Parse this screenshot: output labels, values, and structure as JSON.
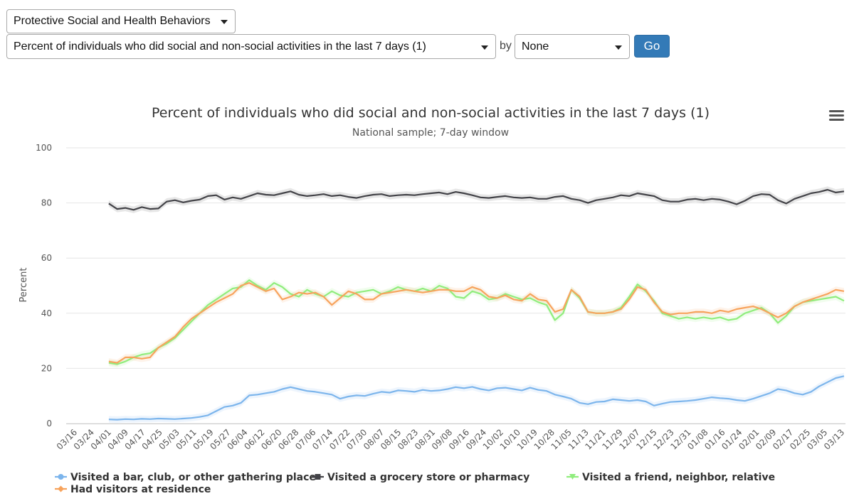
{
  "controls": {
    "category": "Protective Social and Health Behaviors",
    "question": "Percent of individuals who did social and non-social activities in the last 7 days (1)",
    "by_label": "by",
    "by_value": "None",
    "go_label": "Go"
  },
  "colors": {
    "bar": "#7cb5ec",
    "grocery": "#434348",
    "friend": "#90ed7d",
    "visitors": "#f7a35c",
    "band": "#e6e6e6",
    "grid": "#e6e6e6"
  },
  "icons": {
    "menu": "hamburger-menu-icon"
  },
  "chart_data": {
    "type": "line",
    "title": "Percent of individuals who did social and non-social activities in the last 7 days (1)",
    "subtitle": "National sample; 7-day window",
    "ylabel": "Percent",
    "ylim": [
      0,
      100
    ],
    "yticks": [
      "0",
      "20",
      "40",
      "60",
      "80",
      "100"
    ],
    "grid": true,
    "legend_position": "bottom-left",
    "x_tick_labels": [
      "03/16",
      "03/24",
      "04/01",
      "04/09",
      "04/17",
      "04/25",
      "05/03",
      "05/11",
      "05/19",
      "05/27",
      "06/04",
      "06/12",
      "06/20",
      "06/28",
      "07/06",
      "07/14",
      "07/22",
      "07/30",
      "08/07",
      "08/15",
      "08/23",
      "08/31",
      "09/08",
      "09/16",
      "09/24",
      "10/02",
      "10/10",
      "10/19",
      "10/28",
      "11/05",
      "11/13",
      "11/21",
      "11/29",
      "12/07",
      "12/15",
      "12/23",
      "12/31",
      "01/08",
      "01/16",
      "01/24",
      "02/01",
      "02/09",
      "02/17",
      "02/25",
      "03/05",
      "03/13"
    ],
    "x_start_tick": 2,
    "series": [
      {
        "name": "Visited a bar, club, or other gathering place",
        "color": "#7cb5ec",
        "marker": "circle",
        "values": [
          1.5,
          1.4,
          1.6,
          1.5,
          1.7,
          1.6,
          1.8,
          1.7,
          1.6,
          1.8,
          2.0,
          2.4,
          3.0,
          4.5,
          6.0,
          6.5,
          7.5,
          10.2,
          10.5,
          11.0,
          11.5,
          12.5,
          13.2,
          12.5,
          11.8,
          11.5,
          11.0,
          10.5,
          9.0,
          9.8,
          10.2,
          10.0,
          10.8,
          11.5,
          11.2,
          12.0,
          11.8,
          11.5,
          12.2,
          11.8,
          12.0,
          12.5,
          13.2,
          12.8,
          13.3,
          12.5,
          12.0,
          12.8,
          13.0,
          12.5,
          12.0,
          13.0,
          12.2,
          11.8,
          10.5,
          9.8,
          9.0,
          7.5,
          7.0,
          7.8,
          8.0,
          8.8,
          8.5,
          8.2,
          8.5,
          8.0,
          6.5,
          7.2,
          7.8,
          8.0,
          8.2,
          8.5,
          9.0,
          9.5,
          9.2,
          9.0,
          8.5,
          8.2,
          9.0,
          10.0,
          11.0,
          12.5,
          12.0,
          11.0,
          10.5,
          11.5,
          13.5,
          15.0,
          16.5,
          17.2
        ]
      },
      {
        "name": "Visited a grocery store or pharmacy",
        "color": "#434348",
        "marker": "square",
        "values": [
          79.8,
          77.8,
          78.2,
          77.5,
          78.5,
          77.8,
          78.0,
          80.5,
          81.0,
          80.2,
          80.8,
          81.2,
          82.5,
          82.8,
          81.2,
          82.0,
          81.5,
          82.5,
          83.5,
          83.0,
          82.8,
          83.5,
          84.2,
          83.0,
          82.5,
          82.8,
          83.2,
          82.5,
          82.8,
          82.2,
          81.8,
          82.5,
          83.0,
          83.2,
          82.5,
          82.8,
          83.0,
          82.8,
          83.2,
          83.5,
          83.8,
          83.2,
          84.0,
          83.5,
          82.8,
          82.0,
          81.8,
          82.2,
          82.5,
          82.0,
          81.8,
          82.0,
          81.5,
          81.5,
          82.2,
          82.5,
          81.5,
          81.0,
          80.0,
          81.0,
          81.5,
          82.0,
          82.8,
          82.5,
          83.5,
          83.0,
          82.5,
          81.0,
          80.5,
          80.5,
          81.2,
          81.5,
          81.0,
          81.5,
          81.2,
          80.5,
          79.5,
          80.8,
          82.5,
          83.2,
          83.0,
          81.0,
          79.8,
          81.5,
          82.5,
          83.5,
          84.0,
          84.8,
          83.8,
          84.2
        ]
      },
      {
        "name": "Visited a friend, neighbor, relative",
        "color": "#90ed7d",
        "marker": "triangle-down",
        "values": [
          22.0,
          21.5,
          22.5,
          24.0,
          25.0,
          25.5,
          27.5,
          29.0,
          31.0,
          34.0,
          37.0,
          40.0,
          43.0,
          45.0,
          47.0,
          49.0,
          49.5,
          52.0,
          50.0,
          48.5,
          51.0,
          49.5,
          47.0,
          46.0,
          48.5,
          47.0,
          46.0,
          48.0,
          46.5,
          46.0,
          47.5,
          48.0,
          48.5,
          47.0,
          48.0,
          49.5,
          48.5,
          48.0,
          49.0,
          48.0,
          50.0,
          49.0,
          46.0,
          45.5,
          48.0,
          47.0,
          45.0,
          45.5,
          47.0,
          46.0,
          45.0,
          45.5,
          44.0,
          43.0,
          37.5,
          40.0,
          48.5,
          45.5,
          40.5,
          40.0,
          40.0,
          40.5,
          42.0,
          46.0,
          50.5,
          48.0,
          44.5,
          40.0,
          39.0,
          38.0,
          38.5,
          38.0,
          38.5,
          38.0,
          38.5,
          37.5,
          38.0,
          40.0,
          41.0,
          42.0,
          40.0,
          36.5,
          39.0,
          42.5,
          44.0,
          44.5,
          45.0,
          45.5,
          46.0,
          44.5
        ]
      },
      {
        "name": "Had visitors at residence",
        "color": "#f7a35c",
        "marker": "diamond",
        "values": [
          22.5,
          22.0,
          24.0,
          24.0,
          23.5,
          24.0,
          27.5,
          29.5,
          31.5,
          35.0,
          38.0,
          40.0,
          42.0,
          44.0,
          45.5,
          47.0,
          50.0,
          51.0,
          49.5,
          48.0,
          49.0,
          45.0,
          46.0,
          47.5,
          47.0,
          47.5,
          46.0,
          43.0,
          45.5,
          48.0,
          47.0,
          45.0,
          45.0,
          47.0,
          47.5,
          48.0,
          48.5,
          48.0,
          47.5,
          48.0,
          48.5,
          48.5,
          48.0,
          48.0,
          49.5,
          48.5,
          46.0,
          45.5,
          46.5,
          45.0,
          44.5,
          47.0,
          45.0,
          44.5,
          40.5,
          41.5,
          48.5,
          46.0,
          40.5,
          40.0,
          40.0,
          40.5,
          41.5,
          45.0,
          49.5,
          48.5,
          44.0,
          40.5,
          39.5,
          40.0,
          40.0,
          40.5,
          40.5,
          40.0,
          41.0,
          40.5,
          41.5,
          42.0,
          42.5,
          41.5,
          40.0,
          38.5,
          40.0,
          42.5,
          44.0,
          45.0,
          46.0,
          47.0,
          48.5,
          48.0
        ]
      }
    ]
  }
}
